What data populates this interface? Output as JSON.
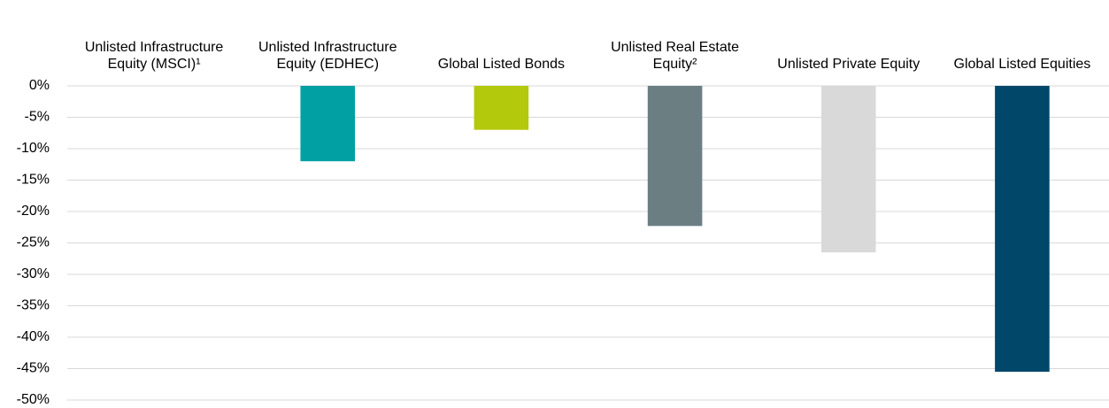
{
  "chart_data": {
    "type": "bar",
    "categories": [
      "Unlisted Infrastructure Equity (MSCI)¹",
      "Unlisted Infrastructure Equity (EDHEC)",
      "Global Listed Bonds",
      "Unlisted Real Estate Equity²",
      "Unlisted Private Equity",
      "Global Listed Equities"
    ],
    "values": [
      0,
      -12,
      -7,
      -22.3,
      -26.5,
      -45.5
    ],
    "colors": [
      null,
      "#00a0a3",
      "#b3c90c",
      "#6b7f83",
      "#d9d9d9",
      "#00476a"
    ],
    "ylim": [
      -50,
      0
    ],
    "yticks": [
      {
        "value": 0,
        "label": "0%"
      },
      {
        "value": -5,
        "label": "-5%"
      },
      {
        "value": -10,
        "label": "-10%"
      },
      {
        "value": -15,
        "label": "-15%"
      },
      {
        "value": -20,
        "label": "-20%"
      },
      {
        "value": -25,
        "label": "-25%"
      },
      {
        "value": -30,
        "label": "-30%"
      },
      {
        "value": -35,
        "label": "-35%"
      },
      {
        "value": -40,
        "label": "-40%"
      },
      {
        "value": -45,
        "label": "-45%"
      },
      {
        "value": -50,
        "label": "-50%"
      }
    ],
    "grid": true
  }
}
